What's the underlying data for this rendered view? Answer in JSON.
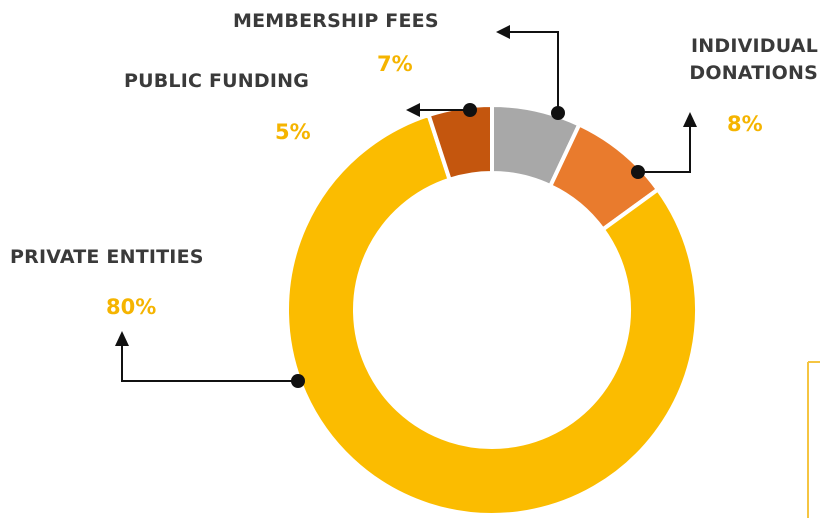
{
  "chart_data": {
    "type": "donut",
    "categories": [
      "MEMBERSHIP FEES",
      "INDIVIDUAL DONATIONS",
      "PRIVATE ENTITIES",
      "PUBLIC FUNDING"
    ],
    "values": [
      7,
      8,
      80,
      5
    ],
    "value_labels": [
      "7%",
      "8%",
      "80%",
      "5%"
    ],
    "colors": [
      "#a8a8a8",
      "#e97b2d",
      "#fbbc00",
      "#c4560e"
    ]
  }
}
